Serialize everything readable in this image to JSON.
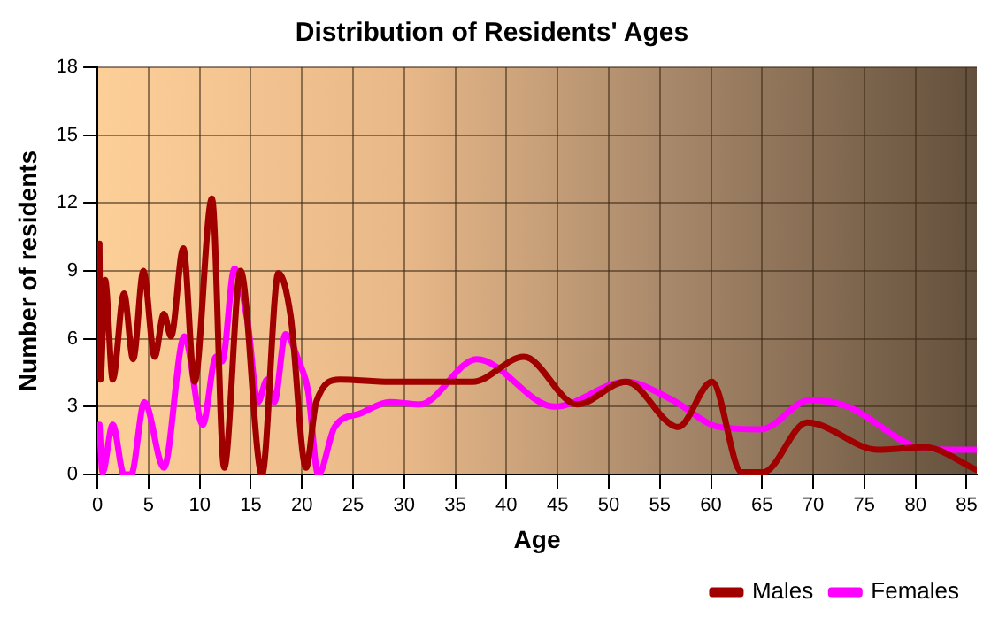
{
  "chart_data": {
    "type": "line",
    "title": "Distribution of Residents' Ages",
    "xlabel": "Age",
    "ylabel": "Number of residents",
    "xlim": [
      0,
      86
    ],
    "xticks": [
      0,
      5,
      10,
      15,
      20,
      25,
      30,
      35,
      40,
      45,
      50,
      55,
      60,
      65,
      70,
      75,
      80,
      85
    ],
    "ylim": [
      0,
      18
    ],
    "yticks": [
      0,
      3,
      6,
      9,
      12,
      15,
      18
    ],
    "grid": true,
    "legend": "bottom right",
    "marker": "none",
    "line_style": "solid",
    "series": [
      {
        "name": "Males",
        "color": "#a00000",
        "x": [
          0.2,
          0.3,
          0.75,
          1.5,
          2.6,
          3.5,
          4.5,
          5.6,
          6.5,
          7.2,
          8.4,
          9.5,
          11.2,
          12.4,
          14,
          16.1,
          17.7,
          18.9,
          20.4,
          21.4,
          23.7,
          28.6,
          36.7,
          41.7,
          46.9,
          51.7,
          56.8,
          60.1,
          63,
          65.1,
          69.4,
          76.3,
          80.9,
          86
        ],
        "values": [
          10.2,
          4.2,
          8.6,
          4.2,
          8,
          5.1,
          9,
          5.2,
          7.1,
          6.1,
          10,
          4.1,
          12.2,
          0.3,
          9,
          0,
          8.9,
          7,
          0.3,
          3.2,
          4.2,
          4.1,
          4.1,
          5.2,
          3.1,
          4.1,
          2.1,
          4.1,
          0.1,
          0.1,
          2.3,
          1.1,
          1.2,
          0.2
        ]
      },
      {
        "name": "Females",
        "color": "#ff00ff",
        "x": [
          0.2,
          0.5,
          1.5,
          2.6,
          3.3,
          4.6,
          6.5,
          8.5,
          10.3,
          11.6,
          12.2,
          13.4,
          14.7,
          15.7,
          16.6,
          17.3,
          18.4,
          19.7,
          20.6,
          21.6,
          23.2,
          25.7,
          28.6,
          31.5,
          37.1,
          44.7,
          51.7,
          56.2,
          60.8,
          64.9,
          69.7,
          73.4,
          80.3,
          83.2,
          86
        ],
        "values": [
          2.2,
          0.1,
          2.2,
          0,
          0,
          3.2,
          0.3,
          6.1,
          2.2,
          5.2,
          5,
          9.1,
          6.7,
          3.2,
          4.2,
          3.2,
          6.2,
          5,
          3.7,
          0,
          2.1,
          2.7,
          3.2,
          3.1,
          5.1,
          3,
          4.1,
          3.3,
          2.1,
          2,
          3.3,
          3,
          1.2,
          1.1,
          1.1
        ]
      }
    ]
  }
}
